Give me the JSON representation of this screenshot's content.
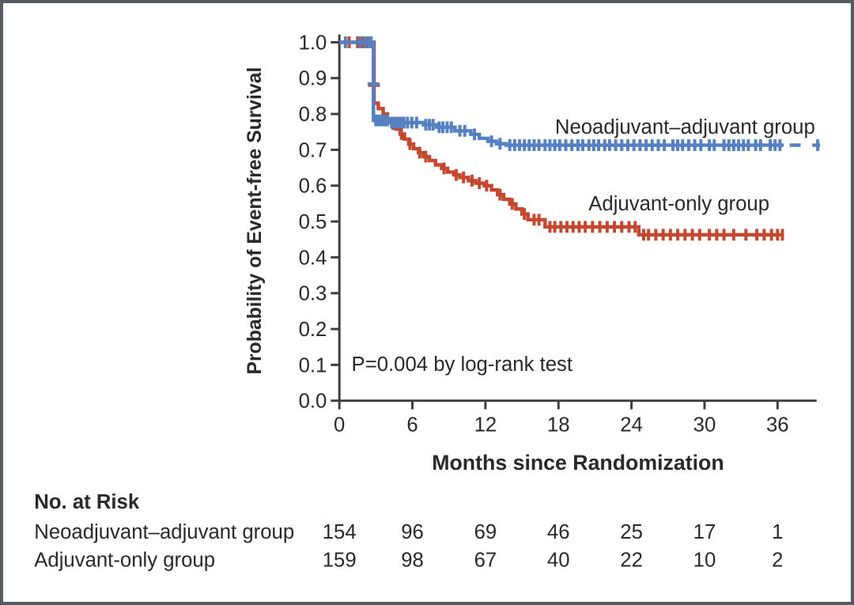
{
  "figure": {
    "background": "#ffffff",
    "border_color": "#565b62"
  },
  "chart_data": {
    "type": "line",
    "subtype": "kaplan-meier-step",
    "title": "",
    "xlabel": "Months since Randomization",
    "ylabel": "Probability of Event-free Survival",
    "xlim": [
      0,
      39.5
    ],
    "ylim": [
      0.0,
      1.0
    ],
    "xticks": [
      0,
      6,
      12,
      18,
      24,
      30,
      36
    ],
    "ytick_labels": [
      "0.0",
      "0.1",
      "0.2",
      "0.3",
      "0.4",
      "0.5",
      "0.6",
      "0.7",
      "0.8",
      "0.9",
      "1.0"
    ],
    "grid": false,
    "legend_position": "inline-labels",
    "axis_color": "#3d3d3d",
    "text_color": "#2b2829",
    "annotation": {
      "text": "P=0.004 by log-rank test",
      "m": 1.0,
      "v": 0.083
    },
    "series": [
      {
        "name": "Adjuvant-only group",
        "color": "#c4472f",
        "label": {
          "text": "Adjuvant-only group",
          "m": 27.9,
          "v": 0.531
        },
        "points": [
          [
            0,
            1.0
          ],
          [
            2.85,
            1.0
          ],
          [
            2.85,
            0.83
          ],
          [
            3.2,
            0.83
          ],
          [
            3.2,
            0.815
          ],
          [
            3.6,
            0.815
          ],
          [
            3.6,
            0.8
          ],
          [
            3.95,
            0.8
          ],
          [
            3.95,
            0.786
          ],
          [
            4.3,
            0.786
          ],
          [
            4.3,
            0.772
          ],
          [
            4.65,
            0.772
          ],
          [
            4.65,
            0.758
          ],
          [
            5.0,
            0.758
          ],
          [
            5.0,
            0.744
          ],
          [
            5.35,
            0.744
          ],
          [
            5.35,
            0.73
          ],
          [
            5.7,
            0.73
          ],
          [
            5.7,
            0.716
          ],
          [
            6.1,
            0.716
          ],
          [
            6.1,
            0.703
          ],
          [
            6.5,
            0.703
          ],
          [
            6.5,
            0.692
          ],
          [
            6.9,
            0.692
          ],
          [
            6.9,
            0.681
          ],
          [
            7.4,
            0.681
          ],
          [
            7.4,
            0.67
          ],
          [
            7.9,
            0.67
          ],
          [
            7.9,
            0.658
          ],
          [
            8.4,
            0.658
          ],
          [
            8.4,
            0.648
          ],
          [
            8.9,
            0.648
          ],
          [
            8.9,
            0.638
          ],
          [
            9.4,
            0.638
          ],
          [
            9.4,
            0.63
          ],
          [
            9.9,
            0.63
          ],
          [
            9.9,
            0.623
          ],
          [
            10.6,
            0.623
          ],
          [
            10.6,
            0.614
          ],
          [
            11.2,
            0.614
          ],
          [
            11.2,
            0.607
          ],
          [
            11.9,
            0.607
          ],
          [
            11.9,
            0.6
          ],
          [
            12.5,
            0.6
          ],
          [
            12.5,
            0.588
          ],
          [
            13.0,
            0.588
          ],
          [
            13.0,
            0.575
          ],
          [
            13.5,
            0.575
          ],
          [
            13.5,
            0.562
          ],
          [
            14.0,
            0.562
          ],
          [
            14.0,
            0.549
          ],
          [
            14.5,
            0.549
          ],
          [
            14.5,
            0.535
          ],
          [
            15.0,
            0.535
          ],
          [
            15.0,
            0.521
          ],
          [
            15.5,
            0.521
          ],
          [
            15.5,
            0.505
          ],
          [
            16.9,
            0.505
          ],
          [
            16.9,
            0.485
          ],
          [
            24.6,
            0.485
          ],
          [
            24.6,
            0.463
          ],
          [
            36.5,
            0.463
          ]
        ],
        "censors": [
          [
            0.8,
            1.0
          ],
          [
            1.5,
            1.0
          ],
          [
            1.9,
            1.0
          ],
          [
            2.3,
            1.0
          ],
          [
            2.6,
            1.0
          ],
          [
            4.4,
            0.772
          ],
          [
            5.1,
            0.744
          ],
          [
            5.8,
            0.716
          ],
          [
            6.6,
            0.692
          ],
          [
            7.1,
            0.681
          ],
          [
            8.6,
            0.648
          ],
          [
            9.6,
            0.63
          ],
          [
            10.2,
            0.623
          ],
          [
            10.9,
            0.614
          ],
          [
            11.5,
            0.607
          ],
          [
            12.1,
            0.6
          ],
          [
            13.2,
            0.575
          ],
          [
            14.2,
            0.549
          ],
          [
            15.2,
            0.521
          ],
          [
            16.0,
            0.505
          ],
          [
            16.4,
            0.505
          ],
          [
            17.3,
            0.485
          ],
          [
            17.7,
            0.485
          ],
          [
            18.2,
            0.485
          ],
          [
            18.7,
            0.485
          ],
          [
            19.2,
            0.485
          ],
          [
            19.7,
            0.485
          ],
          [
            20.2,
            0.485
          ],
          [
            20.8,
            0.485
          ],
          [
            21.4,
            0.485
          ],
          [
            22.0,
            0.485
          ],
          [
            22.6,
            0.485
          ],
          [
            23.2,
            0.485
          ],
          [
            23.8,
            0.485
          ],
          [
            24.3,
            0.485
          ],
          [
            25.0,
            0.463
          ],
          [
            25.4,
            0.463
          ],
          [
            26.0,
            0.463
          ],
          [
            26.6,
            0.463
          ],
          [
            27.2,
            0.463
          ],
          [
            27.8,
            0.463
          ],
          [
            28.4,
            0.463
          ],
          [
            29.0,
            0.463
          ],
          [
            29.6,
            0.463
          ],
          [
            30.4,
            0.463
          ],
          [
            31.0,
            0.463
          ],
          [
            31.6,
            0.463
          ],
          [
            32.4,
            0.463
          ],
          [
            33.4,
            0.463
          ],
          [
            34.3,
            0.463
          ],
          [
            34.9,
            0.463
          ],
          [
            35.5,
            0.463
          ],
          [
            36.0,
            0.463
          ],
          [
            36.4,
            0.463
          ]
        ],
        "censors_h": [
          [
            2.85,
            0.88
          ]
        ],
        "tail_dashes": []
      },
      {
        "name": "Neoadjuvant–adjuvant group",
        "color": "#5580c1",
        "label": {
          "text": "Neoadjuvant–adjuvant group",
          "m": 28.4,
          "v": 0.745
        },
        "points": [
          [
            0,
            1.0
          ],
          [
            2.8,
            1.0
          ],
          [
            2.8,
            0.782
          ],
          [
            4.1,
            0.782
          ],
          [
            4.1,
            0.776
          ],
          [
            6.9,
            0.776
          ],
          [
            6.9,
            0.77
          ],
          [
            8.0,
            0.77
          ],
          [
            8.0,
            0.763
          ],
          [
            9.5,
            0.763
          ],
          [
            9.5,
            0.753
          ],
          [
            10.8,
            0.753
          ],
          [
            10.8,
            0.743
          ],
          [
            11.5,
            0.743
          ],
          [
            11.5,
            0.732
          ],
          [
            12.2,
            0.732
          ],
          [
            12.2,
            0.724
          ],
          [
            12.9,
            0.724
          ],
          [
            12.9,
            0.717
          ],
          [
            13.7,
            0.717
          ],
          [
            13.7,
            0.713
          ],
          [
            36.5,
            0.713
          ]
        ],
        "censors": [
          [
            0.5,
            1.0
          ],
          [
            1.7,
            1.0
          ],
          [
            2.1,
            1.0
          ],
          [
            2.4,
            1.0
          ],
          [
            2.6,
            1.0
          ],
          [
            3.0,
            0.782
          ],
          [
            3.25,
            0.782
          ],
          [
            3.5,
            0.782
          ],
          [
            3.75,
            0.782
          ],
          [
            3.95,
            0.782
          ],
          [
            4.3,
            0.776
          ],
          [
            4.55,
            0.776
          ],
          [
            4.8,
            0.776
          ],
          [
            5.05,
            0.776
          ],
          [
            5.3,
            0.776
          ],
          [
            5.6,
            0.776
          ],
          [
            5.95,
            0.776
          ],
          [
            6.35,
            0.776
          ],
          [
            7.1,
            0.77
          ],
          [
            7.4,
            0.77
          ],
          [
            7.7,
            0.77
          ],
          [
            8.2,
            0.763
          ],
          [
            8.5,
            0.763
          ],
          [
            8.85,
            0.763
          ],
          [
            9.2,
            0.763
          ],
          [
            9.9,
            0.753
          ],
          [
            10.3,
            0.753
          ],
          [
            11.1,
            0.743
          ],
          [
            12.5,
            0.724
          ],
          [
            13.2,
            0.717
          ],
          [
            14.0,
            0.713
          ],
          [
            14.4,
            0.713
          ],
          [
            14.8,
            0.713
          ],
          [
            15.2,
            0.713
          ],
          [
            15.6,
            0.713
          ],
          [
            16.0,
            0.713
          ],
          [
            16.4,
            0.713
          ],
          [
            16.9,
            0.713
          ],
          [
            17.3,
            0.713
          ],
          [
            17.7,
            0.713
          ],
          [
            18.1,
            0.713
          ],
          [
            18.6,
            0.713
          ],
          [
            19.1,
            0.713
          ],
          [
            19.6,
            0.713
          ],
          [
            20.0,
            0.713
          ],
          [
            20.5,
            0.713
          ],
          [
            20.9,
            0.713
          ],
          [
            21.3,
            0.713
          ],
          [
            21.8,
            0.713
          ],
          [
            22.2,
            0.713
          ],
          [
            22.7,
            0.713
          ],
          [
            23.2,
            0.713
          ],
          [
            23.7,
            0.713
          ],
          [
            24.2,
            0.713
          ],
          [
            24.7,
            0.713
          ],
          [
            25.2,
            0.713
          ],
          [
            25.7,
            0.713
          ],
          [
            26.2,
            0.713
          ],
          [
            26.7,
            0.713
          ],
          [
            27.4,
            0.713
          ],
          [
            27.8,
            0.713
          ],
          [
            28.2,
            0.713
          ],
          [
            28.7,
            0.713
          ],
          [
            29.2,
            0.713
          ],
          [
            29.7,
            0.713
          ],
          [
            30.4,
            0.713
          ],
          [
            30.8,
            0.713
          ],
          [
            31.6,
            0.713
          ],
          [
            32.0,
            0.713
          ],
          [
            32.4,
            0.713
          ],
          [
            32.8,
            0.713
          ],
          [
            33.2,
            0.713
          ],
          [
            33.6,
            0.713
          ],
          [
            34.2,
            0.713
          ],
          [
            34.6,
            0.713
          ],
          [
            35.4,
            0.713
          ],
          [
            35.8,
            0.713
          ],
          [
            36.2,
            0.713
          ],
          [
            39.3,
            0.713
          ]
        ],
        "censors_h": [
          [
            2.8,
            0.884
          ]
        ],
        "tail_dashes": [
          [
            37.0,
            37.9,
            0.713
          ],
          [
            38.85,
            39.5,
            0.713
          ]
        ]
      }
    ],
    "risk_table": {
      "title": "No. at Risk",
      "times": [
        0,
        6,
        12,
        18,
        24,
        30,
        36
      ],
      "rows": [
        {
          "name": "Neoadjuvant–adjuvant group",
          "counts": [
            "154",
            "96",
            "69",
            "46",
            "25",
            "17",
            "1"
          ]
        },
        {
          "name": "Adjuvant-only group",
          "counts": [
            "159",
            "98",
            "67",
            "40",
            "22",
            "10",
            "2"
          ]
        }
      ]
    }
  }
}
